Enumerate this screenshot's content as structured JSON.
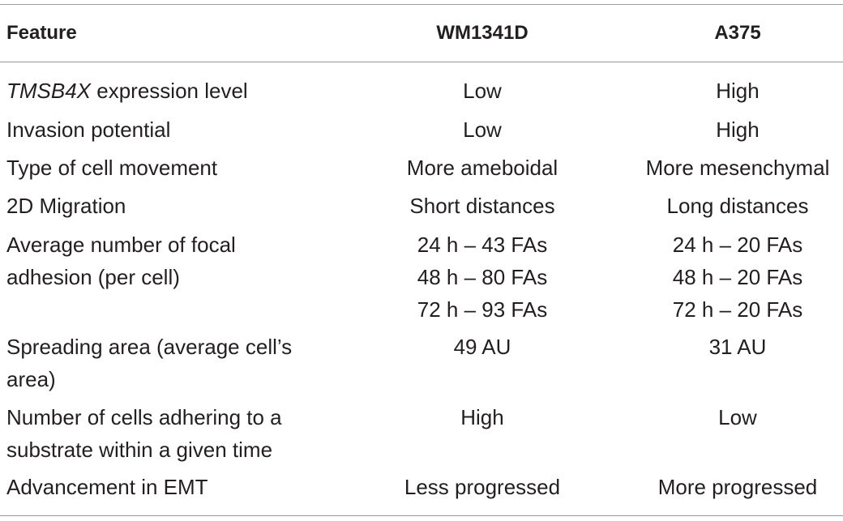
{
  "table": {
    "headers": [
      "Feature",
      "WM1341D",
      "A375"
    ],
    "rows": [
      {
        "feature_italic": "TMSB4X",
        "feature": " expression level",
        "wm1341d": [
          "Low"
        ],
        "a375": [
          "High"
        ]
      },
      {
        "feature": "Invasion potential",
        "wm1341d": [
          "Low"
        ],
        "a375": [
          "High"
        ]
      },
      {
        "feature": "Type of cell movement",
        "wm1341d": [
          "More ameboidal"
        ],
        "a375": [
          "More mesenchymal"
        ]
      },
      {
        "feature": "2D Migration",
        "wm1341d": [
          "Short distances"
        ],
        "a375": [
          "Long distances"
        ]
      },
      {
        "feature_lines": [
          "Average number of focal",
          "adhesion (per cell)"
        ],
        "wm1341d": [
          "24 h – 43 FAs",
          "48 h – 80 FAs",
          "72 h – 93 FAs"
        ],
        "a375": [
          "24 h – 20 FAs",
          "48 h – 20 FAs",
          "72 h – 20 FAs"
        ]
      },
      {
        "feature_lines": [
          "Spreading area (average cell’s",
          "area)"
        ],
        "wm1341d": [
          "49 AU"
        ],
        "a375": [
          "31 AU"
        ]
      },
      {
        "feature_lines": [
          "Number of cells adhering to a",
          "substrate within a given time"
        ],
        "wm1341d": [
          "High"
        ],
        "a375": [
          "Low"
        ]
      },
      {
        "feature": "Advancement in EMT",
        "wm1341d": [
          "Less progressed"
        ],
        "a375": [
          "More progressed"
        ]
      }
    ]
  }
}
